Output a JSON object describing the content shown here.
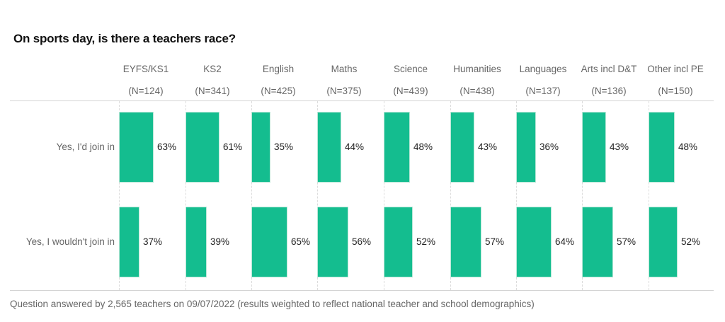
{
  "title": "On sports day, is there a teachers race?",
  "columns": [
    {
      "name": "EYFS/KS1",
      "n": "(N=124)"
    },
    {
      "name": "KS2",
      "n": "(N=341)"
    },
    {
      "name": "English",
      "n": "(N=425)"
    },
    {
      "name": "Maths",
      "n": "(N=375)"
    },
    {
      "name": "Science",
      "n": "(N=439)"
    },
    {
      "name": "Humanities",
      "n": "(N=438)"
    },
    {
      "name": "Languages",
      "n": "(N=137)"
    },
    {
      "name": "Arts incl D&T",
      "n": "(N=136)"
    },
    {
      "name": "Other incl PE",
      "n": "(N=150)"
    }
  ],
  "rows": [
    {
      "label": "Yes, I'd join in",
      "values": [
        "63%",
        "61%",
        "35%",
        "44%",
        "48%",
        "43%",
        "36%",
        "43%",
        "48%"
      ]
    },
    {
      "label": "Yes, I wouldn't join in",
      "values": [
        "37%",
        "39%",
        "65%",
        "56%",
        "52%",
        "57%",
        "64%",
        "57%",
        "52%"
      ]
    }
  ],
  "footnote": "Question answered by 2,565 teachers on 09/07/2022 (results weighted to reflect national teacher and school demographics)",
  "colors": {
    "bar": "#14bd8f",
    "text": "#666666",
    "title": "#111111"
  },
  "chart_data": {
    "type": "bar",
    "orientation": "horizontal-small-multiples",
    "title": "On sports day, is there a teachers race?",
    "categories": [
      "EYFS/KS1",
      "KS2",
      "English",
      "Maths",
      "Science",
      "Humanities",
      "Languages",
      "Arts incl D&T",
      "Other incl PE"
    ],
    "sample_sizes": [
      124,
      341,
      425,
      375,
      439,
      438,
      137,
      136,
      150
    ],
    "series": [
      {
        "name": "Yes, I'd join in",
        "values": [
          63,
          61,
          35,
          44,
          48,
          43,
          36,
          43,
          48
        ]
      },
      {
        "name": "Yes, I wouldn't join in",
        "values": [
          37,
          39,
          65,
          56,
          52,
          57,
          64,
          57,
          52
        ]
      }
    ],
    "unit": "%",
    "xlabel": "",
    "ylabel": "",
    "grid": true,
    "legend": "none (row labels on left)",
    "footnote": "Question answered by 2,565 teachers on 09/07/2022 (results weighted to reflect national teacher and school demographics)"
  }
}
